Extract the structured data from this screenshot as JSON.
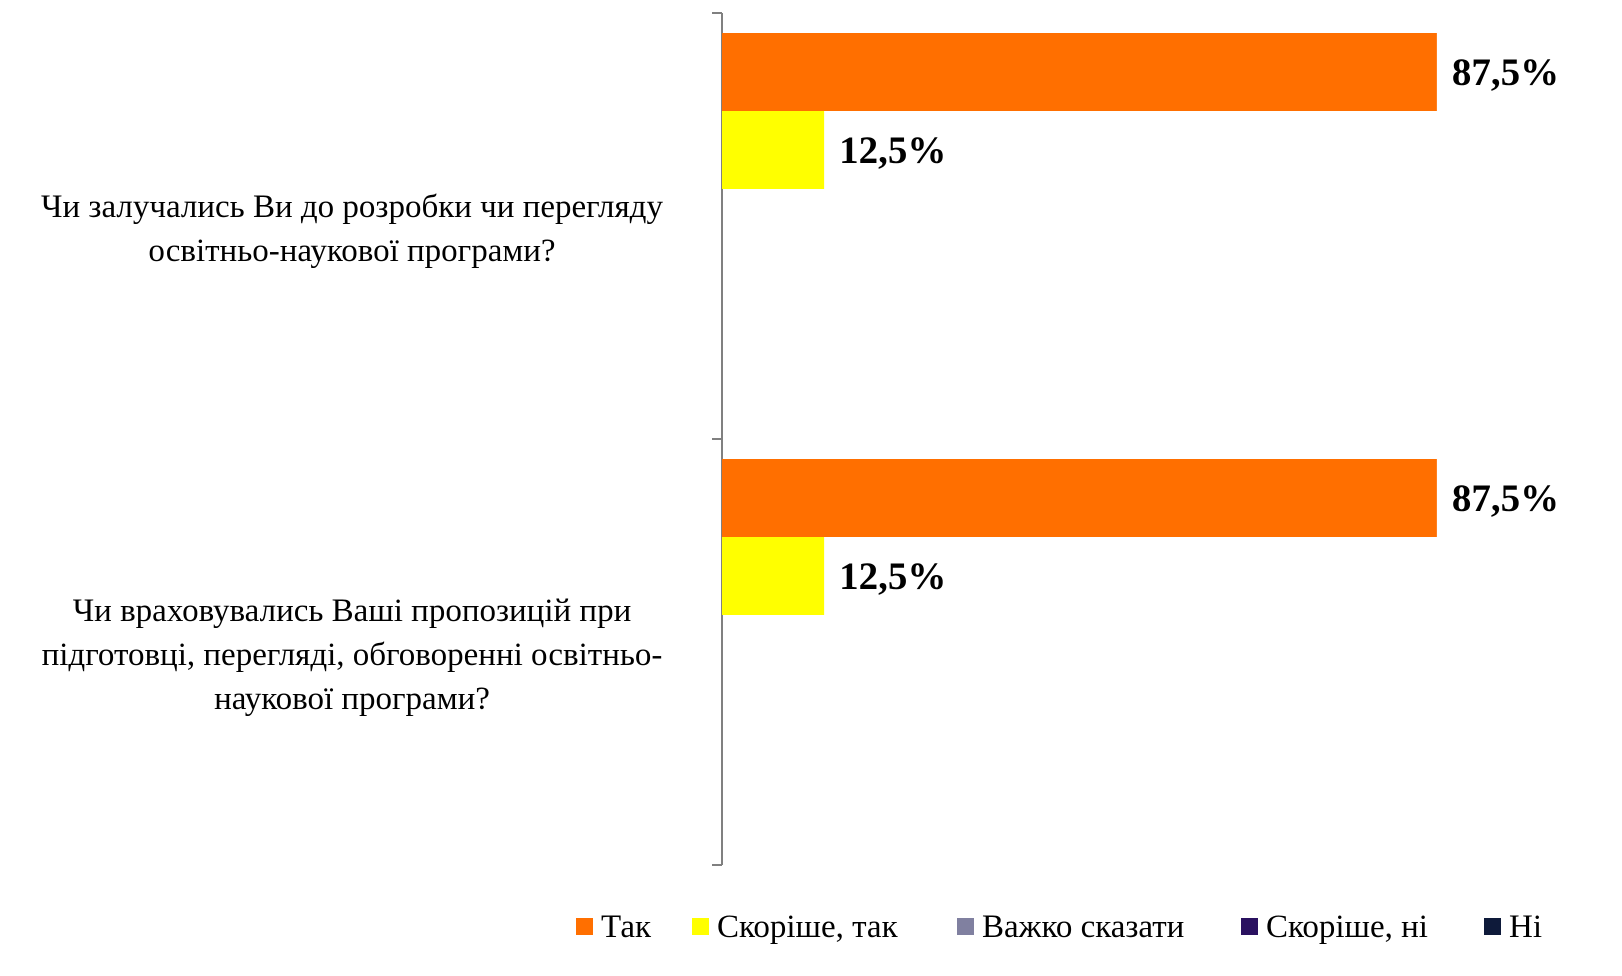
{
  "chart_data": {
    "type": "bar",
    "orientation": "horizontal",
    "title": "",
    "xlabel": "",
    "ylabel": "",
    "categories": [
      {
        "lines": [
          "Чи залучались  Ви до розробки чи перегляду",
          "освітньо-наукової  програми?"
        ]
      },
      {
        "lines": [
          "Чи враховувались  Ваші пропозицій при",
          "підготовці, перегляді, обговоренні освітньо-",
          "наукової програми?"
        ]
      }
    ],
    "series": [
      {
        "name": "Так",
        "color": "#FF6F00",
        "values": [
          87.5,
          87.5
        ],
        "labels": [
          "87,5%",
          "87,5%"
        ]
      },
      {
        "name": "Скоріше, так",
        "color": "#FFFF00",
        "values": [
          12.5,
          12.5
        ],
        "labels": [
          "12,5%",
          "12,5%"
        ]
      },
      {
        "name": "Важко сказати",
        "color": "#8080A0",
        "values": [
          0,
          0
        ],
        "labels": [
          "",
          ""
        ]
      },
      {
        "name": "Скоріше, ні",
        "color": "#2A1160",
        "values": [
          0,
          0
        ],
        "labels": [
          "",
          ""
        ]
      },
      {
        "name": "Ні",
        "color": "#0E1A3A",
        "values": [
          0,
          0
        ],
        "labels": [
          "",
          ""
        ]
      }
    ],
    "xlim": [
      0,
      100
    ],
    "grid": false,
    "legend": "bottom"
  }
}
